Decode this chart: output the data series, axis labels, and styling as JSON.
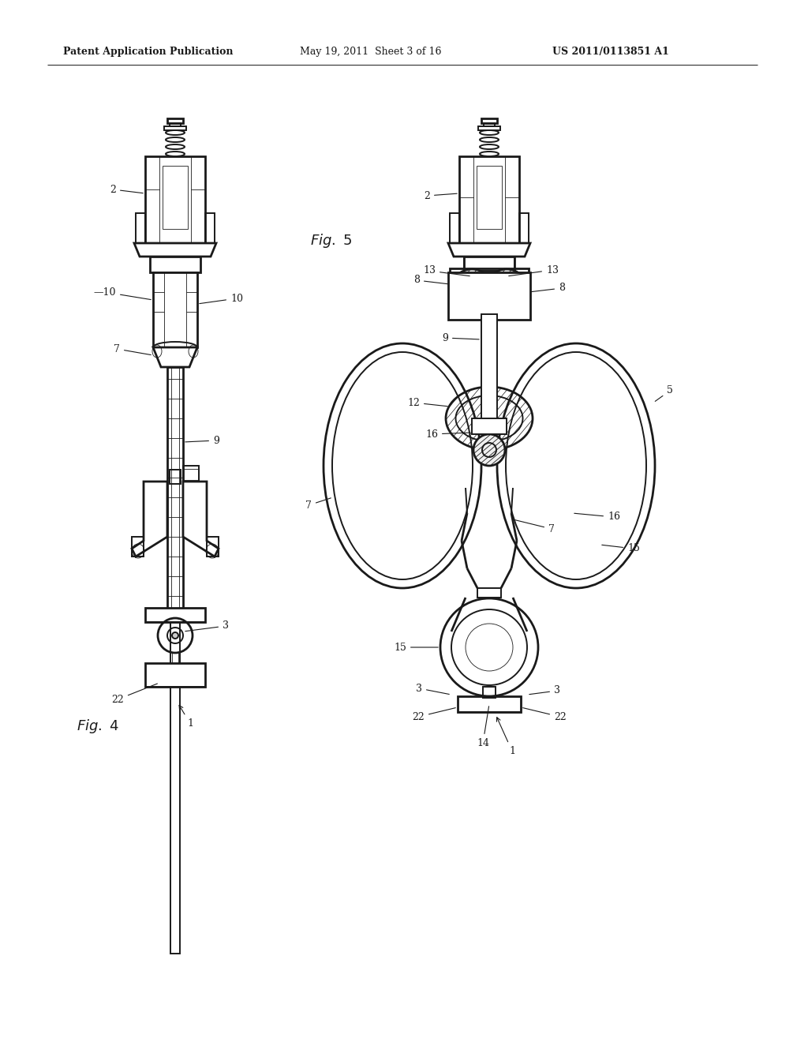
{
  "bg_color": "#ffffff",
  "page_width": 10.24,
  "page_height": 13.2,
  "header_text": "Patent Application Publication",
  "header_date": "May 19, 2011  Sheet 3 of 16",
  "header_patent": "US 2011/0113851 A1",
  "fig4_label": "Fig. 4",
  "fig5_label": "Fig. 5",
  "line_color": "#1a1a1a",
  "label_color": "#111111",
  "line_width": 1.4,
  "thin_line": 0.6,
  "thick_line": 2.0,
  "font_size_header": 9,
  "font_size_label": 9,
  "font_size_fig": 12
}
